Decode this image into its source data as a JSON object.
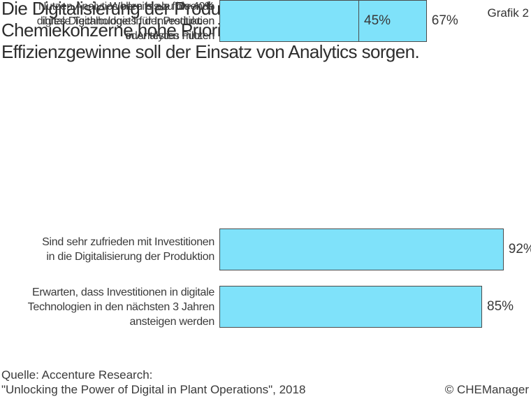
{
  "header": {
    "title": "Die Digitalisierung der Produktion hat für\nChemiekonzerne hohe Priorität, für weitere\nEffizienzgewinne soll der Einsatz von Analytics sorgen.",
    "tag": "Grafik 2"
  },
  "chart_data": {
    "type": "bar",
    "orientation": "horizontal",
    "categories": [
      "Sind sehr zufrieden mit Investitionen\nin die Digitalisierung der Produktion",
      "Erwarten, dass Investitionen in digitale\nTechnologien in den nächsten 3 Jahren\nansteigen werden",
      "Nutzen Analytics bereits als führende\ndigitale Technologie in der Produktion\noder testen Piloten",
      "Wollen bis zu bis 40%\nihres Digitalbudgets für Investitionen\nin Analytics nutzen"
    ],
    "values": [
      92,
      85,
      67,
      45
    ],
    "value_labels": [
      "92%",
      "85%",
      "67%",
      "45%"
    ],
    "xlim": [
      0,
      100
    ],
    "unit": "%",
    "grid": false,
    "legend": false,
    "bar_color": "#7fe2fa",
    "bar_border_color": "#4b4b4b"
  },
  "footer": {
    "source_line1": "Quelle: Accenture Research:",
    "source_line2": "\"Unlocking the Power of Digital in Plant Operations\", 2018",
    "copyright": "© CHEManager"
  }
}
